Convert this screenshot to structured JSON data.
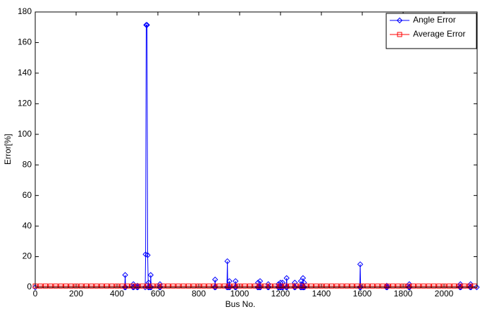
{
  "chart_data": {
    "type": "line",
    "xlabel": "Bus No.",
    "ylabel": "Error[%]",
    "xlim": [
      0,
      2162
    ],
    "ylim": [
      0,
      180
    ],
    "xticks": [
      0,
      200,
      400,
      600,
      800,
      1000,
      1200,
      1400,
      1600,
      1800,
      2000
    ],
    "yticks": [
      0,
      20,
      40,
      60,
      80,
      100,
      120,
      140,
      160,
      180
    ],
    "legend": "northeast",
    "series": [
      {
        "name": "Angle Error",
        "color": "#0000ff",
        "marker": "diamond",
        "x": [
          0,
          438,
          440,
          442,
          478,
          480,
          482,
          498,
          500,
          502,
          538,
          540,
          543,
          547,
          550,
          553,
          555,
          557,
          563,
          565,
          567,
          608,
          610,
          612,
          878,
          880,
          882,
          938,
          940,
          942,
          948,
          950,
          952,
          978,
          980,
          982,
          1088,
          1090,
          1092,
          1098,
          1100,
          1102,
          1138,
          1140,
          1142,
          1188,
          1190,
          1192,
          1198,
          1200,
          1202,
          1208,
          1210,
          1212,
          1228,
          1230,
          1232,
          1268,
          1270,
          1272,
          1298,
          1300,
          1302,
          1308,
          1310,
          1312,
          1313,
          1315,
          1317,
          1588,
          1590,
          1592,
          1718,
          1720,
          1722,
          1828,
          1830,
          1832,
          2078,
          2080,
          2082,
          2128,
          2130,
          2132,
          2160
        ],
        "values": [
          0,
          0,
          8,
          0,
          0,
          2,
          0,
          0,
          1,
          0,
          0,
          21.5,
          171.5,
          171.5,
          21,
          0,
          3,
          0,
          0,
          8,
          0,
          0,
          2,
          0,
          0,
          5,
          0,
          0,
          17,
          0,
          0,
          4,
          0,
          0,
          4,
          0,
          0,
          3,
          0,
          0,
          4,
          0,
          0,
          2,
          0,
          0,
          2,
          0,
          0,
          3,
          0,
          0,
          3,
          0,
          0,
          6,
          0,
          0,
          3,
          0,
          0,
          4,
          0,
          0,
          6,
          0,
          0,
          3,
          0,
          0,
          15,
          0,
          0,
          1,
          0,
          0,
          2,
          0,
          0,
          2,
          0,
          0,
          2,
          0,
          0
        ]
      },
      {
        "name": "Average Error",
        "color": "#ff0000",
        "marker": "square",
        "x": [
          0,
          25,
          50,
          75,
          100,
          125,
          150,
          175,
          200,
          225,
          250,
          275,
          300,
          325,
          350,
          375,
          400,
          425,
          450,
          475,
          500,
          525,
          550,
          575,
          600,
          625,
          650,
          675,
          700,
          725,
          750,
          775,
          800,
          825,
          850,
          875,
          900,
          925,
          950,
          975,
          1000,
          1025,
          1050,
          1075,
          1100,
          1125,
          1150,
          1175,
          1200,
          1225,
          1250,
          1275,
          1300,
          1325,
          1350,
          1375,
          1400,
          1425,
          1450,
          1475,
          1500,
          1525,
          1550,
          1575,
          1600,
          1625,
          1650,
          1675,
          1700,
          1725,
          1750,
          1775,
          1800,
          1825,
          1850,
          1875,
          1900,
          1925,
          1950,
          1975,
          2000,
          2025,
          2050,
          2075,
          2100,
          2125,
          2150
        ],
        "values": [
          0.8,
          0.8,
          0.8,
          0.8,
          0.8,
          0.8,
          0.8,
          0.8,
          0.8,
          0.8,
          0.8,
          0.8,
          0.8,
          0.8,
          0.8,
          0.8,
          0.8,
          0.8,
          0.8,
          0.8,
          0.8,
          0.8,
          0.8,
          0.8,
          0.8,
          0.8,
          0.8,
          0.8,
          0.8,
          0.8,
          0.8,
          0.8,
          0.8,
          0.8,
          0.8,
          0.8,
          0.8,
          0.8,
          0.8,
          0.8,
          0.8,
          0.8,
          0.8,
          0.8,
          0.8,
          0.8,
          0.8,
          0.8,
          0.8,
          0.8,
          0.8,
          0.8,
          0.8,
          0.8,
          0.8,
          0.8,
          0.8,
          0.8,
          0.8,
          0.8,
          0.8,
          0.8,
          0.8,
          0.8,
          0.8,
          0.8,
          0.8,
          0.8,
          0.8,
          0.8,
          0.8,
          0.8,
          0.8,
          0.8,
          0.8,
          0.8,
          0.8,
          0.8,
          0.8,
          0.8,
          0.8,
          0.8,
          0.8,
          0.8,
          0.8,
          0.8,
          0.8
        ]
      }
    ]
  }
}
